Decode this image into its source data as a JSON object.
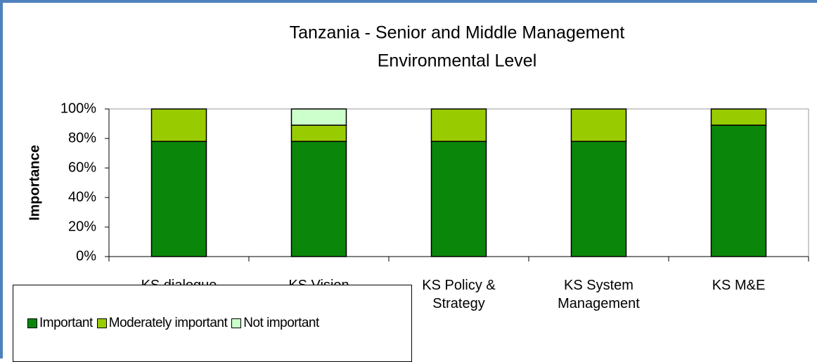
{
  "chart_data": {
    "type": "stacked_bar",
    "title": [
      "Tanzania - Senior and Middle Management",
      "Environmental Level"
    ],
    "y_label": "Importance",
    "categories": [
      "KS dialogue",
      "KS Vision",
      "KS Policy & Strategy",
      "KS System Management",
      "KS M&E"
    ],
    "series": [
      {
        "name": "Important",
        "color": "#0a860a",
        "values": [
          78,
          78,
          78,
          78,
          89
        ]
      },
      {
        "name": "Moderately important",
        "color": "#99cc00",
        "values": [
          22,
          11,
          22,
          22,
          11
        ]
      },
      {
        "name": "Not important",
        "color": "#ccffcc",
        "values": [
          0,
          11,
          0,
          0,
          0
        ]
      }
    ],
    "ylim": [
      0,
      100
    ],
    "yticks": [
      {
        "value": 0,
        "label": "0%"
      },
      {
        "value": 20,
        "label": "20%"
      },
      {
        "value": 40,
        "label": "40%"
      },
      {
        "value": 60,
        "label": "60%"
      },
      {
        "value": 80,
        "label": "80%"
      },
      {
        "value": 100,
        "label": "100%"
      }
    ],
    "grid": false,
    "legend": "bottom-left"
  }
}
